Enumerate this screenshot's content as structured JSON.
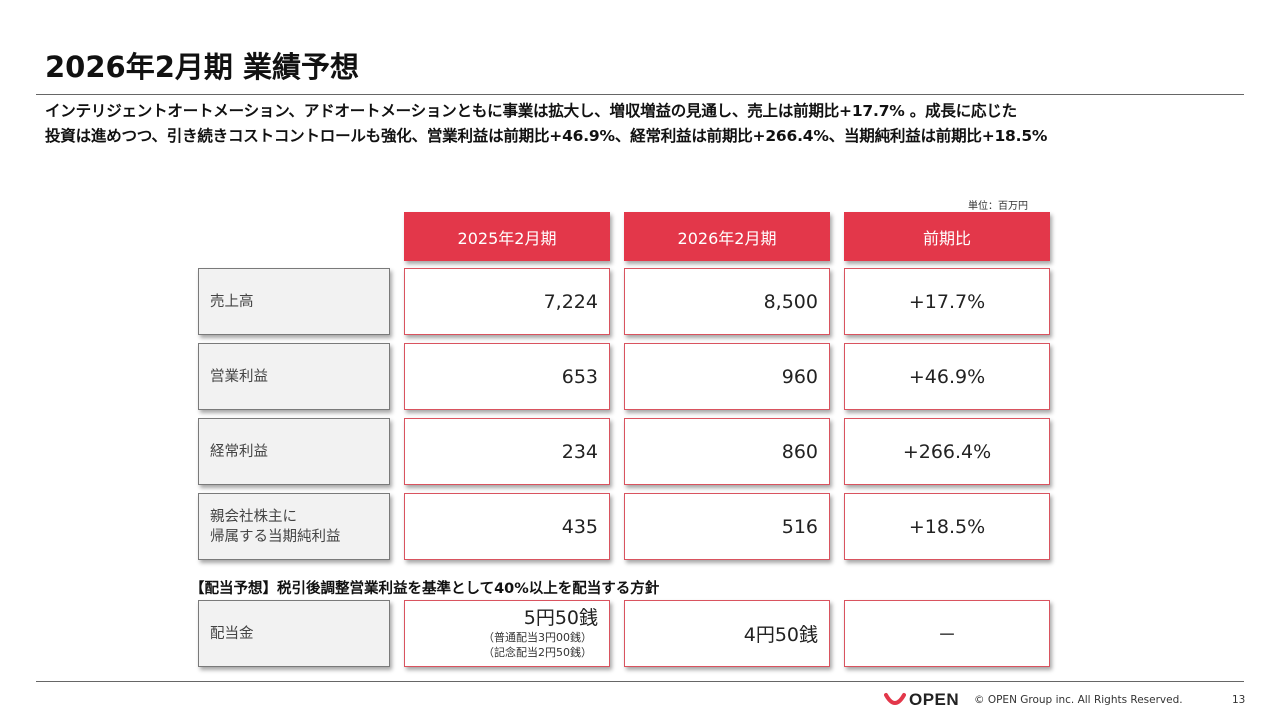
{
  "title": "2026年2月期 業績予想",
  "lead": {
    "line1": "インテリジェントオートメーション、アドオートメーションともに事業は拡大し、増収増益の見通し、売上は前期比+17.7% 。成長に応じた",
    "line2": "投資は進めつつ、引き続きコストコントロールも強化、営業利益は前期比+46.9%、経常利益は前期比+266.4%、当期純利益は前期比+18.5%"
  },
  "unit": "単位：百万円",
  "headers": [
    "2025年2月期",
    "2026年2月期",
    "前期比"
  ],
  "rows": [
    {
      "label": "売上高",
      "fy2025": "7,224",
      "fy2026": "8,500",
      "yoy": "+17.7%"
    },
    {
      "label": "営業利益",
      "fy2025": "653",
      "fy2026": "960",
      "yoy": "+46.9%"
    },
    {
      "label": "経常利益",
      "fy2025": "234",
      "fy2026": "860",
      "yoy": "+266.4%"
    },
    {
      "label_line1": "親会社株主に",
      "label_line2": "帰属する当期純利益",
      "fy2025": "435",
      "fy2026": "516",
      "yoy": "+18.5%"
    }
  ],
  "dividend_note": "【配当予想】税引後調整営業利益を基準として40%以上を配当する方針",
  "dividend": {
    "label": "配当金",
    "fy2025_main": "5円50銭",
    "fy2025_sub1": "（普通配当3円00銭）",
    "fy2025_sub2": "（記念配当2円50銭）",
    "fy2026": "4円50銭",
    "yoy": "－"
  },
  "footer": {
    "logo_text": "OPEN",
    "copyright": "© OPEN Group inc. All Rights Reserved.",
    "page": "13"
  },
  "colors": {
    "accent": "#e3374a",
    "cell_border": "#d9535f",
    "label_bg": "#f2f2f2"
  }
}
